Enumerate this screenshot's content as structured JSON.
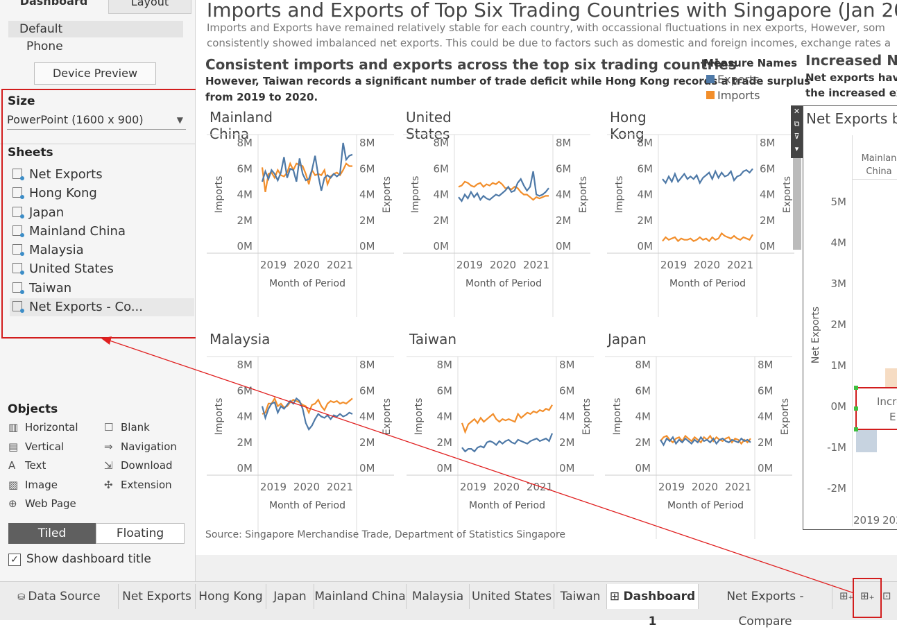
{
  "left_panel": {
    "tabs": {
      "dashboard": "Dashboard",
      "layout": "Layout"
    },
    "devices": [
      "Default",
      "Phone"
    ],
    "device_preview_label": "Device Preview",
    "size": {
      "heading": "Size",
      "value": "PowerPoint (1600 x 900)"
    },
    "sheets": {
      "heading": "Sheets",
      "items": [
        "Net Exports",
        "Hong Kong",
        "Japan",
        "Mainland China",
        "Malaysia",
        "United States",
        "Taiwan",
        "Net Exports - Co..."
      ]
    },
    "objects": {
      "heading": "Objects",
      "items": [
        {
          "label": "Horizontal",
          "icon": "horizontal-icon"
        },
        {
          "label": "Blank",
          "icon": "blank-icon"
        },
        {
          "label": "Vertical",
          "icon": "vertical-icon"
        },
        {
          "label": "Navigation",
          "icon": "navigation-icon"
        },
        {
          "label": "Text",
          "icon": "text-icon"
        },
        {
          "label": "Download",
          "icon": "download-icon"
        },
        {
          "label": "Image",
          "icon": "image-icon"
        },
        {
          "label": "Extension",
          "icon": "extension-icon"
        },
        {
          "label": "Web Page",
          "icon": "web-page-icon"
        }
      ]
    },
    "tiled_label": "Tiled",
    "floating_label": "Floating",
    "show_title_label": "Show dashboard title"
  },
  "dashboard": {
    "title": "Imports and Exports of Top Six Trading Countries with Singapore (Jan 20",
    "subtitle_line1": "Imports and Exports have remained relatively stable for each country, with occassional fluctuations in nex exports, However, som",
    "subtitle_line2": "consistently showed imbalanced net exports. This could be due to factors such as domestic and foreign incomes, exchange rates a",
    "section_heading": "Consistent imports and exports across the top six trading countries",
    "section_desc_line1": "However, Taiwan records a significant number of trade deficit while Hong Kong records a trade surplus",
    "section_desc_line2": "from 2019 to 2020.",
    "legend": {
      "title": "Measure Names",
      "items": [
        {
          "label": "Exports",
          "color": "#4e79a7"
        },
        {
          "label": "Imports",
          "color": "#f28e2b"
        }
      ]
    },
    "right_heading": "Increased Ne",
    "right_desc_line1": "Net exports have",
    "right_desc_line2": "the increased exp",
    "source": "Source: Singapore Merchandise Trade, Department of Statistics Singapore",
    "x_axis_title": "Month of Period",
    "left_axis_title": "Imports",
    "right_axis_title": "Exports",
    "ticks_y": [
      "8M",
      "6M",
      "4M",
      "2M",
      "0M"
    ],
    "ticks_x": [
      "2019",
      "2020",
      "2021"
    ]
  },
  "chart_data": [
    {
      "type": "line",
      "title": "Mainland China",
      "x": [
        0,
        1,
        2,
        3,
        4,
        5,
        6,
        7,
        8,
        9,
        10,
        11,
        12,
        13,
        14,
        15,
        16,
        17,
        18,
        19,
        20,
        21,
        22,
        23,
        24,
        25,
        26,
        27,
        28,
        29
      ],
      "series": [
        {
          "name": "Exports",
          "values": [
            5.0,
            5.8,
            5.2,
            5.9,
            5.6,
            5.1,
            5.7,
            6.9,
            5.3,
            6.0,
            5.9,
            5.0,
            6.8,
            5.6,
            5.1,
            5.2,
            5.9,
            7.0,
            5.5,
            4.3,
            5.3,
            5.5,
            5.3,
            5.6,
            5.4,
            5.6,
            8.0,
            6.7,
            7.0,
            7.1
          ]
        },
        {
          "name": "Imports",
          "values": [
            6.1,
            4.2,
            5.6,
            5.7,
            5.3,
            5.9,
            5.5,
            5.4,
            5.7,
            6.4,
            5.9,
            6.4,
            6.3,
            6.2,
            5.6,
            4.8,
            5.9,
            5.5,
            5.6,
            5.5,
            5.9,
            4.8,
            5.4,
            5.6,
            5.7,
            5.5,
            5.9,
            6.4,
            6.2,
            6.2
          ]
        }
      ],
      "ylim": [
        0,
        8
      ]
    },
    {
      "type": "line",
      "title": "United States",
      "x": [
        0,
        1,
        2,
        3,
        4,
        5,
        6,
        7,
        8,
        9,
        10,
        11,
        12,
        13,
        14,
        15,
        16,
        17,
        18,
        19,
        20,
        21,
        22,
        23,
        24,
        25,
        26,
        27,
        28,
        29
      ],
      "series": [
        {
          "name": "Exports",
          "values": [
            3.8,
            3.5,
            4.0,
            3.7,
            4.2,
            3.8,
            4.1,
            3.6,
            3.9,
            3.7,
            3.6,
            3.8,
            4.0,
            3.9,
            4.1,
            4.3,
            4.6,
            4.2,
            4.3,
            4.9,
            5.2,
            4.7,
            4.3,
            4.6,
            5.8,
            4.0,
            3.9,
            4.0,
            4.2,
            4.5
          ]
        },
        {
          "name": "Imports",
          "values": [
            4.6,
            4.7,
            5.0,
            4.9,
            4.7,
            4.6,
            4.8,
            4.9,
            4.6,
            4.8,
            4.7,
            4.9,
            4.8,
            5.0,
            4.8,
            4.5,
            4.5,
            4.4,
            4.6,
            4.5,
            4.2,
            4.0,
            4.0,
            3.8,
            3.6,
            3.8,
            3.7,
            3.8,
            3.9,
            3.9
          ]
        }
      ],
      "ylim": [
        0,
        8
      ]
    },
    {
      "type": "line",
      "title": "Hong Kong",
      "x": [
        0,
        1,
        2,
        3,
        4,
        5,
        6,
        7,
        8,
        9,
        10,
        11,
        12,
        13,
        14,
        15,
        16,
        17,
        18,
        19,
        20,
        21,
        22,
        23,
        24,
        25,
        26,
        27,
        28,
        29
      ],
      "series": [
        {
          "name": "Exports",
          "values": [
            5.2,
            4.9,
            5.4,
            5.0,
            5.6,
            5.0,
            5.3,
            5.6,
            5.2,
            5.4,
            5.2,
            5.5,
            4.9,
            5.3,
            5.5,
            5.7,
            5.2,
            5.8,
            5.3,
            5.7,
            5.4,
            5.5,
            5.8,
            5.1,
            5.4,
            5.5,
            5.8,
            5.9,
            5.7,
            6.0
          ]
        },
        {
          "name": "Imports",
          "values": [
            0.4,
            0.7,
            0.5,
            0.6,
            0.7,
            0.4,
            0.6,
            0.5,
            0.5,
            0.6,
            0.4,
            0.5,
            0.7,
            0.5,
            0.6,
            0.4,
            0.7,
            0.5,
            0.6,
            1.0,
            0.8,
            0.7,
            0.6,
            0.8,
            0.6,
            0.5,
            0.7,
            0.6,
            0.5,
            0.9
          ]
        }
      ],
      "ylim": [
        0,
        8
      ]
    },
    {
      "type": "line",
      "title": "Malaysia",
      "x": [
        0,
        1,
        2,
        3,
        4,
        5,
        6,
        7,
        8,
        9,
        10,
        11,
        12,
        13,
        14,
        15,
        16,
        17,
        18,
        19,
        20,
        21,
        22,
        23,
        24,
        25,
        26,
        27,
        28,
        29
      ],
      "series": [
        {
          "name": "Exports",
          "values": [
            4.8,
            3.9,
            4.6,
            5.0,
            5.1,
            4.3,
            4.8,
            4.6,
            4.9,
            5.2,
            5.0,
            5.4,
            5.2,
            4.6,
            3.5,
            3.0,
            3.3,
            3.8,
            4.2,
            4.0,
            3.9,
            4.1,
            3.8,
            4.1,
            4.0,
            4.2,
            4.0,
            4.1,
            4.3,
            4.2
          ]
        },
        {
          "name": "Imports",
          "values": [
            4.2,
            4.3,
            5.0,
            5.0,
            5.4,
            4.8,
            5.0,
            4.7,
            4.8,
            5.1,
            5.3,
            5.2,
            5.1,
            4.9,
            4.8,
            4.3,
            4.9,
            5.0,
            5.3,
            4.8,
            4.5,
            5.0,
            5.2,
            5.1,
            5.2,
            5.0,
            5.1,
            5.0,
            5.2,
            5.4
          ]
        }
      ],
      "ylim": [
        0,
        8
      ]
    },
    {
      "type": "line",
      "title": "Taiwan",
      "x": [
        0,
        1,
        2,
        3,
        4,
        5,
        6,
        7,
        8,
        9,
        10,
        11,
        12,
        13,
        14,
        15,
        16,
        17,
        18,
        19,
        20,
        21,
        22,
        23,
        24,
        25,
        26,
        27,
        28,
        29
      ],
      "series": [
        {
          "name": "Exports",
          "values": [
            1.6,
            1.3,
            1.5,
            1.5,
            1.3,
            1.6,
            1.7,
            1.6,
            2.0,
            2.1,
            2.0,
            1.8,
            2.1,
            1.9,
            2.1,
            2.2,
            2.0,
            1.9,
            2.2,
            2.1,
            2.0,
            1.9,
            2.1,
            2.2,
            2.3,
            2.1,
            2.2,
            2.3,
            2.1,
            2.7
          ]
        },
        {
          "name": "Imports",
          "values": [
            3.5,
            2.8,
            3.4,
            3.6,
            3.8,
            3.5,
            3.9,
            3.6,
            3.8,
            4.0,
            4.2,
            3.8,
            3.6,
            3.8,
            3.7,
            3.8,
            3.7,
            3.6,
            4.2,
            3.9,
            4.1,
            4.3,
            4.2,
            4.4,
            4.3,
            4.5,
            4.4,
            4.6,
            4.5,
            4.9
          ]
        }
      ],
      "ylim": [
        0,
        8
      ]
    },
    {
      "type": "line",
      "title": "Japan",
      "x": [
        0,
        1,
        2,
        3,
        4,
        5,
        6,
        7,
        8,
        9,
        10,
        11,
        12,
        13,
        14,
        15,
        16,
        17,
        18,
        19,
        20,
        21,
        22,
        23,
        24,
        25,
        26,
        27,
        28,
        29
      ],
      "series": [
        {
          "name": "Exports",
          "values": [
            2.2,
            1.8,
            2.3,
            2.1,
            2.4,
            1.9,
            2.2,
            2.0,
            2.3,
            2.1,
            1.9,
            2.2,
            2.0,
            2.4,
            2.1,
            2.2,
            2.0,
            2.3,
            1.9,
            2.2,
            2.3,
            2.1,
            2.0,
            2.2,
            2.1,
            2.0,
            2.3,
            2.1,
            2.2,
            2.0
          ]
        },
        {
          "name": "Imports",
          "values": [
            2.1,
            2.4,
            2.5,
            2.2,
            2.0,
            2.3,
            2.4,
            2.1,
            2.5,
            2.3,
            2.1,
            2.4,
            2.2,
            2.0,
            2.4,
            2.2,
            2.5,
            2.1,
            2.4,
            2.2,
            2.1,
            2.3,
            2.4,
            2.0,
            2.3,
            2.2,
            1.9,
            2.2,
            2.0,
            2.3
          ]
        }
      ],
      "ylim": [
        0,
        8
      ]
    },
    {
      "type": "bar",
      "title": "Net Exports b",
      "categories": [
        "Mainlan China"
      ],
      "ylabel": "Net Exports",
      "yticks": [
        "5M",
        "4M",
        "3M",
        "2M",
        "1M",
        "0M",
        "-1M",
        "-2M"
      ],
      "xticks": [
        "2019",
        "202"
      ],
      "ylim": [
        -2,
        5
      ],
      "box_text_line1": "Incre",
      "box_text_line2": "E"
    }
  ],
  "bottom_tabs": [
    {
      "label": "Data Source",
      "icon": "data-source-icon"
    },
    {
      "label": "Net Exports"
    },
    {
      "label": "Hong Kong"
    },
    {
      "label": "Japan"
    },
    {
      "label": "Mainland China"
    },
    {
      "label": "Malaysia"
    },
    {
      "label": "United States"
    },
    {
      "label": "Taiwan"
    },
    {
      "label": "Dashboard 1",
      "icon": "dashboard-icon"
    },
    {
      "label": "Net Exports - Compare"
    }
  ],
  "colors": {
    "exports": "#4e79a7",
    "imports": "#f28e2b",
    "annotation_red": "#d21d1d"
  }
}
